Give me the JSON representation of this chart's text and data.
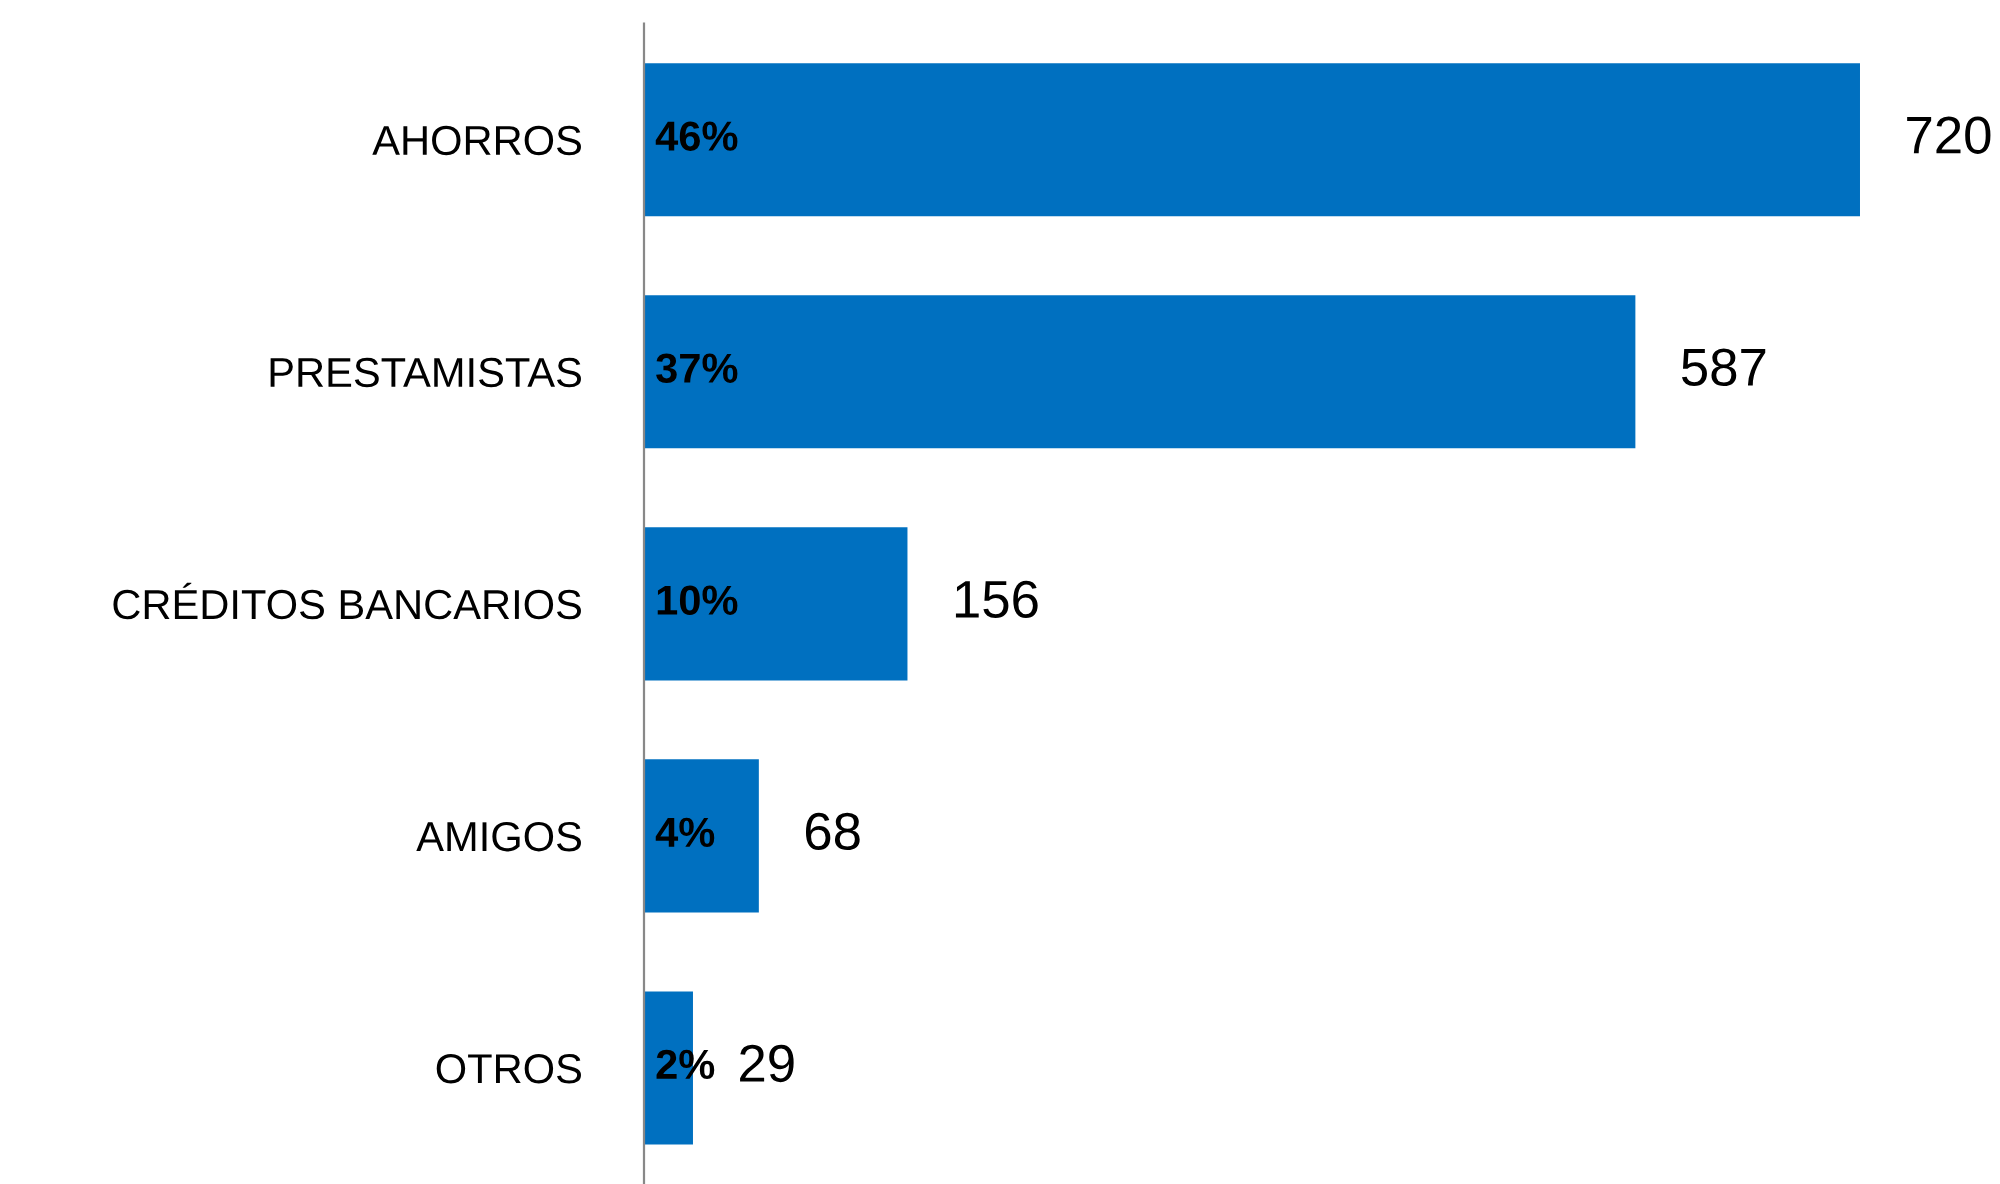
{
  "chart_data": {
    "type": "bar",
    "orientation": "horizontal",
    "categories": [
      "AHORROS",
      "PRESTAMISTAS",
      "CRÉDITOS BANCARIOS",
      "AMIGOS",
      "OTROS"
    ],
    "values": [
      720,
      587,
      156,
      68,
      29
    ],
    "color": "#0070c0",
    "data_labels": true,
    "grid": false,
    "legend": false,
    "annotations": [
      "46%",
      "37%",
      "10%",
      "4%",
      "2%"
    ]
  }
}
